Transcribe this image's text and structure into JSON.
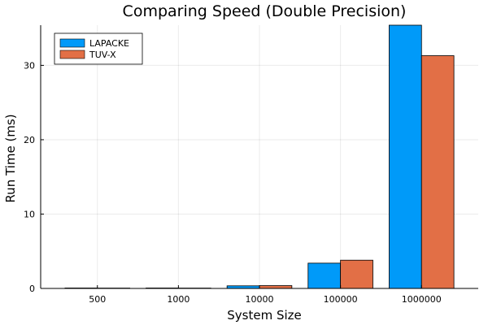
{
  "chart_data": {
    "type": "bar",
    "title": "Comparing Speed (Double Precision)",
    "xlabel": "System Size",
    "ylabel": "Run Time (ms)",
    "categories": [
      "500",
      "1000",
      "10000",
      "100000",
      "1000000"
    ],
    "series": [
      {
        "name": "LAPACKE",
        "color": "#009af9",
        "values": [
          0.06,
          0.06,
          0.35,
          3.4,
          35.4
        ]
      },
      {
        "name": "TUV-X",
        "color": "#e26f46",
        "values": [
          0.05,
          0.05,
          0.38,
          3.8,
          31.3
        ]
      }
    ],
    "ylim": [
      0,
      35.4
    ],
    "yticks": [
      0,
      10,
      20,
      30
    ],
    "grid": true,
    "legend": "top-left"
  }
}
